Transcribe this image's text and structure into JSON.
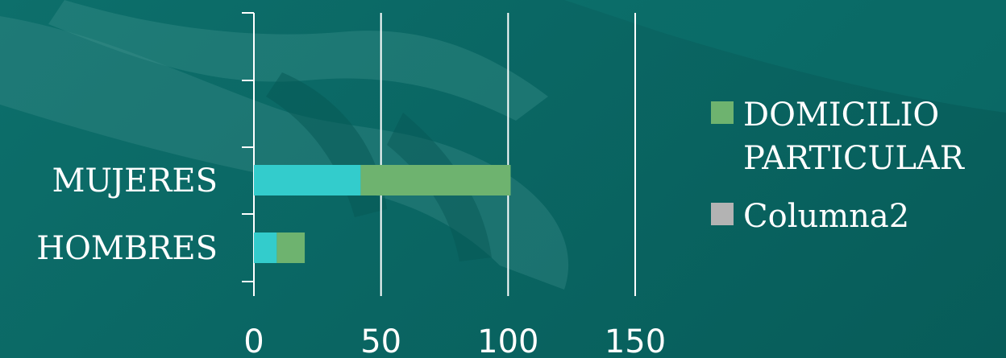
{
  "chart_data": {
    "type": "bar",
    "orientation": "horizontal",
    "stacked": true,
    "categories": [
      "MUJERES",
      "HOMBRES"
    ],
    "series": [
      {
        "values": [
          42,
          9
        ],
        "color": "#33cccc"
      },
      {
        "name": "DOMICILIO PARTICULAR",
        "name_lines": [
          "DOMICILIO",
          "PARTICULAR"
        ],
        "values": [
          59,
          11
        ],
        "color": "#6eb36f"
      },
      {
        "name": "Columna2",
        "values": [
          0,
          0
        ],
        "color": "#b3b3b3"
      }
    ],
    "xlim": [
      0,
      150
    ],
    "xticks": [
      "0",
      "50",
      "100",
      "150"
    ],
    "grid": true,
    "legend": "right"
  }
}
